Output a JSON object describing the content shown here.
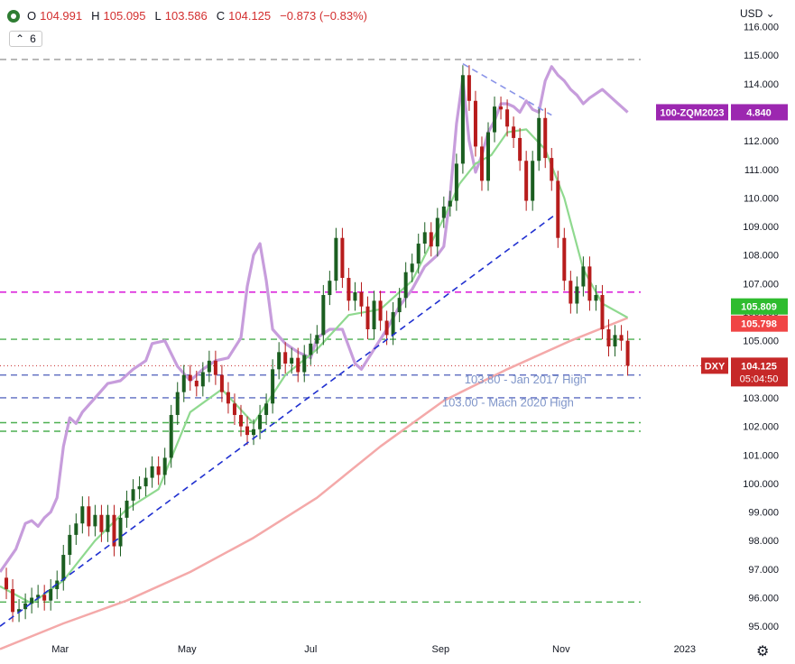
{
  "header": {
    "open_label": "O",
    "open": "104.991",
    "high_label": "H",
    "high": "105.095",
    "low_label": "L",
    "low": "103.586",
    "close_label": "C",
    "close": "104.125",
    "change": "−0.873 (−0.83%)",
    "indicator_toggle": "6",
    "currency": "USD ⌄"
  },
  "chart_data": {
    "type": "candlestick",
    "axis": {
      "y_ticks": [
        "95.000",
        "96.000",
        "97.000",
        "98.000",
        "99.000",
        "100.000",
        "101.000",
        "102.000",
        "103.000",
        "104.000",
        "105.000",
        "106.000",
        "107.000",
        "108.000",
        "109.000",
        "110.000",
        "111.000",
        "112.000",
        "113.000",
        "114.000",
        "115.000",
        "116.000"
      ],
      "y_range": [
        94.5,
        116.3
      ],
      "x_ticks": [
        {
          "label": "Mar",
          "x": 0.19
        },
        {
          "label": "May",
          "x": 0.59
        },
        {
          "label": "Jul",
          "x": 0.98
        },
        {
          "label": "Sep",
          "x": 1.39
        },
        {
          "label": "Nov",
          "x": 1.77
        },
        {
          "label": "2023",
          "x": 2.16
        }
      ],
      "x_range": [
        0,
        2.3
      ]
    },
    "dxy_close": [
      [
        0.0,
        96.7
      ],
      [
        0.02,
        96.3
      ],
      [
        0.04,
        95.5
      ],
      [
        0.06,
        95.6
      ],
      [
        0.08,
        95.8
      ],
      [
        0.1,
        96.0
      ],
      [
        0.12,
        96.1
      ],
      [
        0.14,
        95.9
      ],
      [
        0.16,
        96.3
      ],
      [
        0.18,
        96.6
      ],
      [
        0.2,
        97.5
      ],
      [
        0.22,
        98.2
      ],
      [
        0.24,
        98.6
      ],
      [
        0.26,
        99.2
      ],
      [
        0.28,
        98.5
      ],
      [
        0.3,
        98.9
      ],
      [
        0.32,
        98.3
      ],
      [
        0.34,
        98.9
      ],
      [
        0.36,
        97.8
      ],
      [
        0.38,
        98.8
      ],
      [
        0.4,
        99.4
      ],
      [
        0.42,
        99.8
      ],
      [
        0.44,
        99.9
      ],
      [
        0.46,
        100.2
      ],
      [
        0.48,
        100.6
      ],
      [
        0.5,
        100.3
      ],
      [
        0.52,
        100.9
      ],
      [
        0.54,
        102.4
      ],
      [
        0.56,
        103.2
      ],
      [
        0.58,
        103.8
      ],
      [
        0.6,
        103.6
      ],
      [
        0.62,
        103.4
      ],
      [
        0.64,
        103.9
      ],
      [
        0.66,
        104.3
      ],
      [
        0.68,
        103.8
      ],
      [
        0.7,
        103.2
      ],
      [
        0.72,
        102.8
      ],
      [
        0.74,
        102.4
      ],
      [
        0.76,
        102.0
      ],
      [
        0.78,
        101.7
      ],
      [
        0.8,
        101.9
      ],
      [
        0.82,
        102.4
      ],
      [
        0.84,
        102.8
      ],
      [
        0.86,
        104.0
      ],
      [
        0.88,
        104.6
      ],
      [
        0.9,
        104.2
      ],
      [
        0.92,
        104.4
      ],
      [
        0.94,
        103.9
      ],
      [
        0.96,
        104.5
      ],
      [
        0.98,
        104.9
      ],
      [
        1.0,
        105.2
      ],
      [
        1.02,
        106.6
      ],
      [
        1.04,
        107.1
      ],
      [
        1.06,
        108.6
      ],
      [
        1.08,
        107.2
      ],
      [
        1.1,
        106.4
      ],
      [
        1.12,
        106.7
      ],
      [
        1.14,
        106.2
      ],
      [
        1.16,
        105.4
      ],
      [
        1.18,
        106.4
      ],
      [
        1.2,
        105.7
      ],
      [
        1.22,
        105.2
      ],
      [
        1.24,
        106.0
      ],
      [
        1.26,
        106.5
      ],
      [
        1.28,
        107.4
      ],
      [
        1.3,
        107.7
      ],
      [
        1.32,
        108.4
      ],
      [
        1.34,
        108.8
      ],
      [
        1.36,
        108.3
      ],
      [
        1.38,
        109.3
      ],
      [
        1.4,
        109.7
      ],
      [
        1.42,
        109.9
      ],
      [
        1.44,
        111.2
      ],
      [
        1.46,
        114.3
      ],
      [
        1.48,
        113.4
      ],
      [
        1.5,
        111.8
      ],
      [
        1.52,
        110.6
      ],
      [
        1.54,
        112.3
      ],
      [
        1.56,
        113.2
      ],
      [
        1.58,
        113.1
      ],
      [
        1.6,
        112.5
      ],
      [
        1.62,
        112.1
      ],
      [
        1.64,
        111.3
      ],
      [
        1.66,
        109.9
      ],
      [
        1.68,
        111.3
      ],
      [
        1.7,
        112.8
      ],
      [
        1.72,
        111.4
      ],
      [
        1.74,
        110.6
      ],
      [
        1.76,
        108.6
      ],
      [
        1.78,
        107.1
      ],
      [
        1.8,
        106.3
      ],
      [
        1.82,
        106.9
      ],
      [
        1.84,
        107.6
      ],
      [
        1.86,
        106.4
      ],
      [
        1.88,
        106.6
      ],
      [
        1.9,
        105.4
      ],
      [
        1.92,
        104.8
      ],
      [
        1.94,
        105.2
      ],
      [
        1.96,
        105.0
      ],
      [
        1.98,
        104.125
      ]
    ],
    "sma_short": [
      [
        0.0,
        96.4
      ],
      [
        0.1,
        95.8
      ],
      [
        0.2,
        96.6
      ],
      [
        0.3,
        98.0
      ],
      [
        0.4,
        99.1
      ],
      [
        0.5,
        99.8
      ],
      [
        0.6,
        102.5
      ],
      [
        0.7,
        103.3
      ],
      [
        0.8,
        102.1
      ],
      [
        0.9,
        103.8
      ],
      [
        1.0,
        104.7
      ],
      [
        1.1,
        105.9
      ],
      [
        1.2,
        106.1
      ],
      [
        1.3,
        107.1
      ],
      [
        1.4,
        109.3
      ],
      [
        1.45,
        110.5
      ],
      [
        1.5,
        111.2
      ],
      [
        1.55,
        111.5
      ],
      [
        1.6,
        112.3
      ],
      [
        1.66,
        112.4
      ],
      [
        1.72,
        111.7
      ],
      [
        1.78,
        110.0
      ],
      [
        1.84,
        107.5
      ],
      [
        1.9,
        106.3
      ],
      [
        1.98,
        105.809
      ]
    ],
    "sma_long": [
      [
        0.0,
        94.2
      ],
      [
        0.2,
        95.1
      ],
      [
        0.4,
        95.9
      ],
      [
        0.6,
        96.9
      ],
      [
        0.8,
        98.1
      ],
      [
        1.0,
        99.5
      ],
      [
        1.2,
        101.3
      ],
      [
        1.4,
        102.9
      ],
      [
        1.6,
        104.0
      ],
      [
        1.8,
        105.0
      ],
      [
        1.98,
        105.798
      ]
    ],
    "zqm_inverse": [
      [
        0.0,
        96.9
      ],
      [
        0.05,
        97.7
      ],
      [
        0.08,
        98.6
      ],
      [
        0.1,
        98.7
      ],
      [
        0.12,
        98.5
      ],
      [
        0.14,
        98.8
      ],
      [
        0.16,
        99.0
      ],
      [
        0.18,
        99.5
      ],
      [
        0.2,
        101.3
      ],
      [
        0.22,
        102.3
      ],
      [
        0.24,
        102.1
      ],
      [
        0.26,
        102.5
      ],
      [
        0.3,
        103.0
      ],
      [
        0.34,
        103.5
      ],
      [
        0.38,
        103.6
      ],
      [
        0.42,
        104.0
      ],
      [
        0.46,
        104.3
      ],
      [
        0.48,
        104.9
      ],
      [
        0.52,
        105.0
      ],
      [
        0.56,
        104.1
      ],
      [
        0.6,
        103.6
      ],
      [
        0.64,
        104.0
      ],
      [
        0.68,
        104.3
      ],
      [
        0.72,
        104.4
      ],
      [
        0.76,
        105.1
      ],
      [
        0.78,
        106.9
      ],
      [
        0.8,
        108.0
      ],
      [
        0.82,
        108.4
      ],
      [
        0.84,
        107.1
      ],
      [
        0.86,
        105.4
      ],
      [
        0.9,
        104.9
      ],
      [
        0.94,
        104.6
      ],
      [
        0.98,
        104.4
      ],
      [
        1.0,
        105.1
      ],
      [
        1.04,
        105.4
      ],
      [
        1.08,
        105.4
      ],
      [
        1.12,
        104.2
      ],
      [
        1.14,
        104.0
      ],
      [
        1.18,
        104.7
      ],
      [
        1.22,
        105.4
      ],
      [
        1.26,
        106.2
      ],
      [
        1.3,
        106.8
      ],
      [
        1.34,
        107.6
      ],
      [
        1.38,
        108.0
      ],
      [
        1.4,
        108.3
      ],
      [
        1.42,
        110.1
      ],
      [
        1.44,
        112.6
      ],
      [
        1.46,
        114.2
      ],
      [
        1.48,
        112.0
      ],
      [
        1.5,
        110.9
      ],
      [
        1.52,
        111.5
      ],
      [
        1.54,
        112.3
      ],
      [
        1.56,
        112.7
      ],
      [
        1.58,
        113.3
      ],
      [
        1.6,
        113.3
      ],
      [
        1.62,
        113.2
      ],
      [
        1.64,
        113.0
      ],
      [
        1.66,
        113.4
      ],
      [
        1.68,
        113.1
      ],
      [
        1.7,
        113.0
      ],
      [
        1.72,
        114.1
      ],
      [
        1.74,
        114.6
      ],
      [
        1.76,
        114.3
      ],
      [
        1.78,
        114.1
      ],
      [
        1.8,
        113.8
      ],
      [
        1.82,
        113.6
      ],
      [
        1.84,
        113.3
      ],
      [
        1.86,
        113.5
      ],
      [
        1.9,
        113.8
      ],
      [
        1.94,
        113.4
      ],
      [
        1.98,
        113.0
      ]
    ],
    "horizontal_levels": [
      {
        "price": 114.85,
        "color": "#999999",
        "style": "dash"
      },
      {
        "price": 106.7,
        "color": "#d600d6",
        "style": "dash"
      },
      {
        "price": 105.05,
        "color": "#4caf50",
        "style": "dash"
      },
      {
        "price": 103.8,
        "color": "#5c6bc0",
        "style": "dash"
      },
      {
        "price": 103.0,
        "color": "#5c6bc0",
        "style": "dash"
      },
      {
        "price": 102.13,
        "color": "#4caf50",
        "style": "dash"
      },
      {
        "price": 101.83,
        "color": "#4caf50",
        "style": "dash"
      },
      {
        "price": 95.85,
        "color": "#4caf50",
        "style": "dash"
      }
    ],
    "trendlines": [
      {
        "from": [
          0.0,
          95.0
        ],
        "to": [
          1.75,
          109.4
        ],
        "color": "#2030d0"
      },
      {
        "from": [
          1.46,
          114.7
        ],
        "to": [
          1.74,
          112.9
        ],
        "color": "#8a94e8"
      }
    ],
    "annotations": [
      {
        "text": "103.80 - Jan 2017 High",
        "at": [
          1.85,
          103.5
        ]
      },
      {
        "text": "103.00 - Mach 2020 High",
        "at": [
          1.81,
          102.7
        ]
      }
    ],
    "price_labels": [
      {
        "text": "100-ZQM2023",
        "value": "4.840",
        "y": 113.0,
        "bg": "#9c27b0"
      },
      {
        "text": "",
        "value": "105.809",
        "y": 106.2,
        "bg": "#2fbc2f"
      },
      {
        "text": "",
        "value": "105.798",
        "y": 105.6,
        "bg": "#f04545"
      },
      {
        "text": "DXY",
        "value": "104.125",
        "y": 104.125,
        "bg": "#c62828",
        "countdown": "05:04:50"
      }
    ],
    "colors": {
      "up": "#1b5e20",
      "down": "#b71c1c",
      "sma_short": "#8fd98f",
      "sma_long": "#f4a9a9",
      "zqm": "#c79ddc"
    }
  }
}
